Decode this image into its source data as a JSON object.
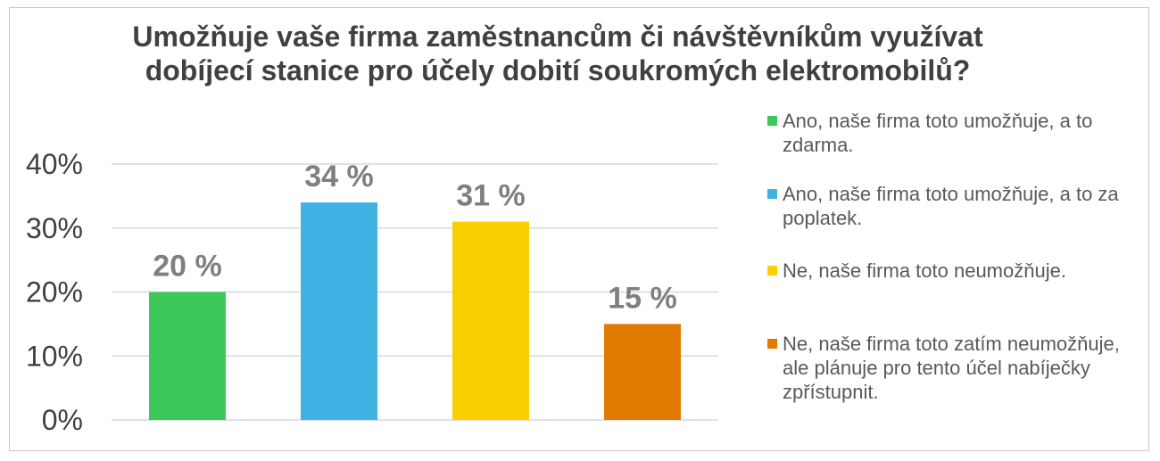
{
  "chart_data": {
    "type": "bar",
    "title": "Umožňuje vaše firma zaměstnancům či návštěvníkům využívat dobíjecí stanice pro účely dobití soukromých elektromobilů?",
    "categories": [
      "Ano, naše firma toto umožňuje, a to zdarma.",
      "Ano, naše firma toto umožňuje, a to za poplatek.",
      "Ne, naše firma toto neumožňuje.",
      "Ne, naše firma toto zatím neumožňuje, ale plánuje pro tento účel nabíječky zpřístupnit."
    ],
    "values": [
      20,
      34,
      31,
      15
    ],
    "data_labels": [
      "20 %",
      "34 %",
      "31 %",
      "15 %"
    ],
    "colors": [
      "#3cc85a",
      "#41b2e4",
      "#fcd000",
      "#e07b00"
    ],
    "ylim": [
      0,
      40
    ],
    "yticks": [
      0,
      10,
      20,
      30,
      40
    ],
    "ytick_labels": [
      "0%",
      "10%",
      "20%",
      "30%",
      "40%"
    ],
    "grid": true,
    "legend_position": "right"
  }
}
